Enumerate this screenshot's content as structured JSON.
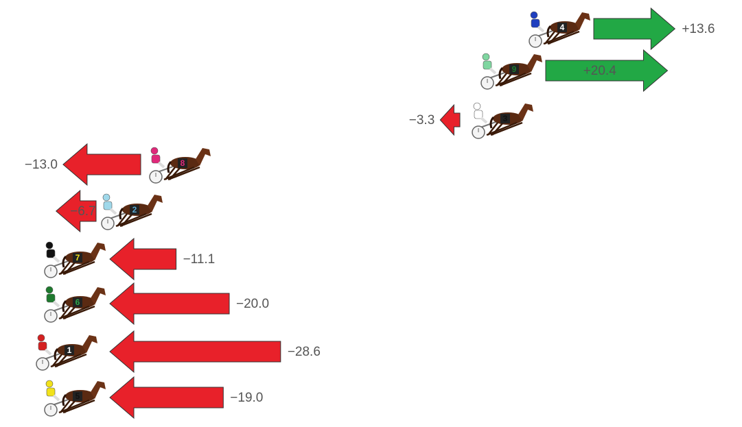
{
  "chart_data": {
    "type": "arrow",
    "categories": [
      "4",
      "9",
      "3",
      "8",
      "2",
      "7",
      "6",
      "1",
      "5"
    ],
    "values": [
      13.6,
      20.4,
      -3.3,
      -13.0,
      -6.7,
      -11.1,
      -20.0,
      -28.6,
      -19.0
    ],
    "value_labels": [
      "+13.6",
      "+20.4",
      "−3.3",
      "−13.0",
      "−6.7",
      "−11.1",
      "−20.0",
      "−28.6",
      "−19.0"
    ],
    "positive_color": "#22a845",
    "negative_color": "#e8212a",
    "jockey_colors": [
      "#1f3fbf",
      "#7fd6a0",
      "#ffffff",
      "#e0287a",
      "#9fd8ea",
      "#111111",
      "#1e7a2e",
      "#d42020",
      "#f2e21a"
    ],
    "number_colors": [
      "#ffffff",
      "#1e7a2e",
      "#111111",
      "#e0287a",
      "#5aa8d0",
      "#f2e21a",
      "#2ea84a",
      "#ffffff",
      "#111111"
    ]
  }
}
